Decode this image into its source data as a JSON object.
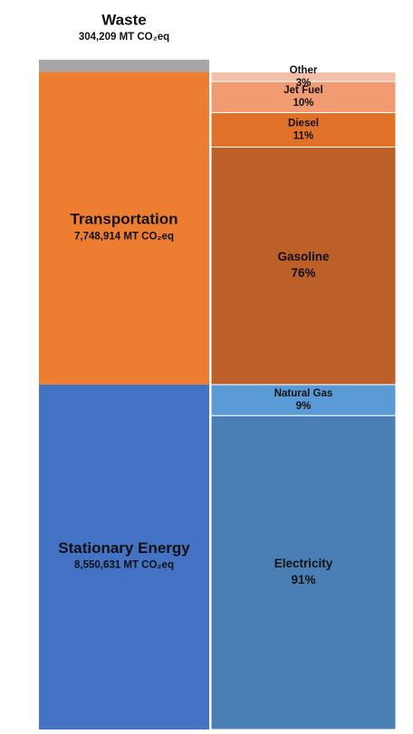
{
  "chart_data": {
    "type": "stacked-breakdown",
    "series": [
      {
        "name": "Stationary Energy",
        "value": 8550631,
        "value_label": "8,550,631 MT CO₂eq",
        "color": "#4472c4",
        "parts": {
          "categories": [
            "Electricity",
            "Natural Gas"
          ],
          "values": [
            91,
            9
          ],
          "value_labels": [
            "91%",
            "9%"
          ],
          "colors": [
            "#4a7fb5",
            "#5b9bd5"
          ]
        }
      },
      {
        "name": "Transportation",
        "value": 7748914,
        "value_label": "7,748,914 MT CO₂eq",
        "color": "#ed7d31",
        "parts": {
          "categories": [
            "Gasoline",
            "Diesel",
            "Jet Fuel",
            "Other"
          ],
          "values": [
            76,
            11,
            10,
            3
          ],
          "value_labels": [
            "76%",
            "11%",
            "10%",
            "3%"
          ],
          "colors": [
            "#bd5f28",
            "#e07128",
            "#f19b72",
            "#f4bfa8"
          ]
        }
      },
      {
        "name": "Waste",
        "value": 304209,
        "value_label": "304,209 MT CO₂eq",
        "color": "#a6a6a6"
      }
    ]
  }
}
